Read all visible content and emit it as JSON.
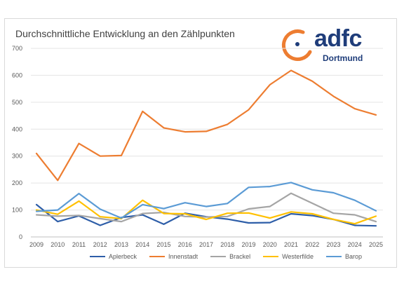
{
  "chart_data": {
    "type": "line",
    "title": "Durchschnittliche Entwicklung an den Zählpunkten",
    "x": [
      "2009",
      "2010",
      "2011",
      "2012",
      "2013",
      "2014",
      "2015",
      "2016",
      "2017",
      "2018",
      "2019",
      "2020",
      "2021",
      "2022",
      "2023",
      "2024",
      "2025"
    ],
    "yticks": [
      "0",
      "100",
      "200",
      "300",
      "400",
      "500",
      "600",
      "700"
    ],
    "ylim": [
      0,
      700
    ],
    "grid": true,
    "legend_position": "bottom",
    "series": [
      {
        "name": "Aplerbeck",
        "color": "#2e5ea8",
        "values": [
          120,
          57,
          78,
          43,
          72,
          82,
          47,
          88,
          75,
          66,
          52,
          53,
          86,
          79,
          65,
          43,
          41
        ]
      },
      {
        "name": "Innenstadt",
        "color": "#ed7d31",
        "values": [
          310,
          210,
          347,
          300,
          302,
          466,
          405,
          390,
          392,
          418,
          472,
          565,
          618,
          578,
          522,
          476,
          453
        ]
      },
      {
        "name": "Brackel",
        "color": "#a5a5a5",
        "values": [
          82,
          77,
          80,
          68,
          57,
          87,
          91,
          76,
          74,
          76,
          104,
          113,
          162,
          125,
          88,
          82,
          57
        ]
      },
      {
        "name": "Westerfilde",
        "color": "#ffc000",
        "values": [
          100,
          84,
          133,
          75,
          68,
          136,
          87,
          86,
          65,
          88,
          89,
          70,
          93,
          86,
          65,
          49,
          77
        ]
      },
      {
        "name": "Barop",
        "color": "#5b9bd5",
        "values": [
          95,
          100,
          161,
          103,
          70,
          120,
          105,
          127,
          113,
          124,
          184,
          187,
          202,
          175,
          164,
          136,
          97
        ]
      }
    ]
  },
  "logo": {
    "word": "adfc",
    "sub": "Dortmund",
    "ring_color": "#ed7d31",
    "text_color": "#1f3d7a"
  }
}
